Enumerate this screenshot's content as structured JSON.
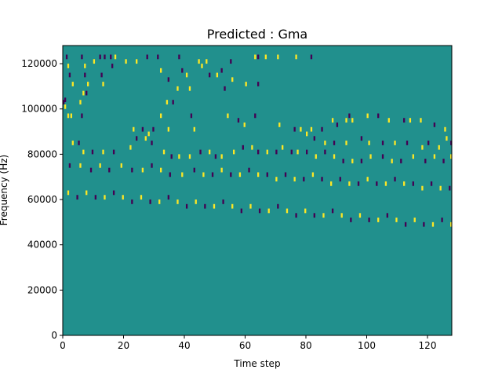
{
  "figure": {
    "title": "Predicted : Gma"
  },
  "chart_data": {
    "type": "heatmap",
    "title": "Predicted : Gma",
    "xlabel": "Time step",
    "ylabel": "Frequency (Hz)",
    "xlim": [
      0,
      128
    ],
    "ylim": [
      0,
      128000
    ],
    "x_ticks": [
      0,
      20,
      40,
      60,
      80,
      100,
      120
    ],
    "x_tick_labels": [
      "0",
      "20",
      "40",
      "60",
      "80",
      "100",
      "120"
    ],
    "y_ticks": [
      0,
      20000,
      40000,
      60000,
      80000,
      100000,
      120000
    ],
    "y_tick_labels": [
      "0",
      "20000",
      "40000",
      "60000",
      "80000",
      "100000",
      "120000"
    ],
    "grid": false,
    "legend": "none",
    "colormap": "viridis",
    "colors": {
      "background": "#21908d",
      "high": "#fde725",
      "low": "#440154"
    },
    "bin_height_hz": 2000,
    "description_of_values": "cell value: -1 = low (dark purple), 0 = neutral (teal), 1 = high (yellow)",
    "cells": [
      [
        2,
        122,
        -1
      ],
      [
        3,
        118,
        1
      ],
      [
        4,
        114,
        -1
      ],
      [
        6,
        110,
        1
      ],
      [
        1,
        103,
        -1
      ],
      [
        0,
        102,
        -1
      ],
      [
        1,
        100,
        1
      ],
      [
        3,
        96,
        1
      ],
      [
        5,
        96,
        1
      ],
      [
        12,
        122,
        -1
      ],
      [
        14,
        118,
        1
      ],
      [
        14,
        114,
        -1
      ],
      [
        16,
        110,
        1
      ],
      [
        13,
        106,
        1
      ],
      [
        15,
        106,
        -1
      ],
      [
        11,
        102,
        1
      ],
      [
        12,
        96,
        -1
      ],
      [
        20,
        120,
        1
      ],
      [
        24,
        122,
        -1
      ],
      [
        27,
        122,
        -1
      ],
      [
        31,
        122,
        -1
      ],
      [
        34,
        122,
        1
      ],
      [
        32,
        118,
        -1
      ],
      [
        25,
        114,
        -1
      ],
      [
        26,
        110,
        1
      ],
      [
        41,
        120,
        1
      ],
      [
        48,
        120,
        1
      ],
      [
        55,
        122,
        -1
      ],
      [
        62,
        122,
        -1
      ],
      [
        76,
        122,
        -1
      ],
      [
        89,
        120,
        1
      ],
      [
        91,
        118,
        1
      ],
      [
        94,
        120,
        1
      ],
      [
        64,
        116,
        1
      ],
      [
        78,
        116,
        -1
      ],
      [
        81,
        114,
        1
      ],
      [
        96,
        114,
        -1
      ],
      [
        101,
        114,
        1
      ],
      [
        104,
        116,
        -1
      ],
      [
        110,
        120,
        -1
      ],
      [
        126,
        122,
        1
      ],
      [
        128,
        122,
        -1
      ],
      [
        133,
        122,
        1
      ],
      [
        141,
        122,
        1
      ],
      [
        152,
        128,
        -1
      ],
      [
        153,
        122,
        1
      ],
      [
        163,
        122,
        -1
      ],
      [
        69,
        112,
        -1
      ],
      [
        75,
        108,
        1
      ],
      [
        83,
        108,
        1
      ],
      [
        111,
        112,
        1
      ],
      [
        106,
        108,
        -1
      ],
      [
        120,
        110,
        1
      ],
      [
        128,
        110,
        -1
      ],
      [
        68,
        102,
        1
      ],
      [
        72,
        102,
        -1
      ],
      [
        64,
        96,
        1
      ],
      [
        69,
        90,
        1
      ],
      [
        59,
        90,
        -1
      ],
      [
        56,
        88,
        1
      ],
      [
        52,
        90,
        -1
      ],
      [
        46,
        90,
        1
      ],
      [
        84,
        96,
        -1
      ],
      [
        86,
        90,
        1
      ],
      [
        108,
        96,
        1
      ],
      [
        115,
        94,
        -1
      ],
      [
        119,
        92,
        1
      ],
      [
        126,
        96,
        -1
      ],
      [
        142,
        92,
        1
      ],
      [
        152,
        90,
        -1
      ],
      [
        156,
        90,
        1
      ],
      [
        163,
        90,
        1
      ],
      [
        170,
        90,
        -1
      ],
      [
        177,
        94,
        1
      ],
      [
        180,
        92,
        -1
      ],
      [
        186,
        94,
        1
      ],
      [
        188,
        96,
        -1
      ],
      [
        190,
        94,
        1
      ],
      [
        200,
        96,
        1
      ],
      [
        207,
        96,
        -1
      ],
      [
        214,
        94,
        1
      ],
      [
        224,
        94,
        -1
      ],
      [
        228,
        94,
        1
      ],
      [
        235,
        94,
        1
      ],
      [
        244,
        92,
        -1
      ],
      [
        251,
        90,
        1
      ],
      [
        160,
        88,
        1
      ],
      [
        165,
        86,
        -1
      ],
      [
        172,
        84,
        1
      ],
      [
        178,
        84,
        -1
      ],
      [
        186,
        84,
        1
      ],
      [
        196,
        86,
        -1
      ],
      [
        201,
        84,
        1
      ],
      [
        210,
        84,
        -1
      ],
      [
        218,
        84,
        1
      ],
      [
        226,
        84,
        -1
      ],
      [
        236,
        82,
        1
      ],
      [
        240,
        84,
        -1
      ],
      [
        247,
        82,
        1
      ],
      [
        252,
        86,
        1
      ],
      [
        255,
        84,
        -1
      ],
      [
        6,
        84,
        1
      ],
      [
        10,
        84,
        -1
      ],
      [
        13,
        80,
        1
      ],
      [
        19,
        80,
        -1
      ],
      [
        26,
        80,
        1
      ],
      [
        33,
        80,
        -1
      ],
      [
        44,
        82,
        1
      ],
      [
        48,
        86,
        -1
      ],
      [
        54,
        86,
        1
      ],
      [
        58,
        84,
        -1
      ],
      [
        66,
        80,
        1
      ],
      [
        71,
        78,
        -1
      ],
      [
        76,
        78,
        1
      ],
      [
        83,
        78,
        1
      ],
      [
        90,
        80,
        -1
      ],
      [
        96,
        80,
        1
      ],
      [
        100,
        78,
        -1
      ],
      [
        104,
        78,
        1
      ],
      [
        112,
        80,
        1
      ],
      [
        118,
        82,
        -1
      ],
      [
        124,
        82,
        1
      ],
      [
        128,
        80,
        -1
      ],
      [
        134,
        80,
        1
      ],
      [
        140,
        80,
        -1
      ],
      [
        144,
        82,
        1
      ],
      [
        150,
        80,
        -1
      ],
      [
        154,
        80,
        1
      ],
      [
        160,
        80,
        -1
      ],
      [
        166,
        78,
        1
      ],
      [
        172,
        80,
        -1
      ],
      [
        178,
        78,
        1
      ],
      [
        184,
        76,
        -1
      ],
      [
        190,
        76,
        1
      ],
      [
        196,
        76,
        -1
      ],
      [
        202,
        78,
        1
      ],
      [
        210,
        78,
        -1
      ],
      [
        216,
        76,
        1
      ],
      [
        222,
        76,
        -1
      ],
      [
        230,
        78,
        1
      ],
      [
        238,
        76,
        -1
      ],
      [
        244,
        78,
        1
      ],
      [
        250,
        76,
        -1
      ],
      [
        255,
        78,
        1
      ],
      [
        4,
        74,
        -1
      ],
      [
        11,
        74,
        1
      ],
      [
        18,
        72,
        -1
      ],
      [
        24,
        74,
        1
      ],
      [
        30,
        72,
        -1
      ],
      [
        38,
        74,
        1
      ],
      [
        45,
        72,
        -1
      ],
      [
        52,
        72,
        1
      ],
      [
        58,
        74,
        -1
      ],
      [
        64,
        72,
        1
      ],
      [
        70,
        70,
        -1
      ],
      [
        78,
        70,
        1
      ],
      [
        86,
        72,
        -1
      ],
      [
        92,
        70,
        1
      ],
      [
        98,
        70,
        -1
      ],
      [
        104,
        72,
        1
      ],
      [
        110,
        70,
        -1
      ],
      [
        116,
        70,
        1
      ],
      [
        122,
        72,
        -1
      ],
      [
        128,
        70,
        1
      ],
      [
        134,
        70,
        -1
      ],
      [
        140,
        68,
        1
      ],
      [
        146,
        70,
        -1
      ],
      [
        152,
        68,
        1
      ],
      [
        158,
        68,
        -1
      ],
      [
        164,
        70,
        1
      ],
      [
        170,
        68,
        -1
      ],
      [
        176,
        66,
        1
      ],
      [
        182,
        68,
        -1
      ],
      [
        188,
        66,
        1
      ],
      [
        194,
        66,
        -1
      ],
      [
        200,
        68,
        1
      ],
      [
        206,
        66,
        -1
      ],
      [
        212,
        66,
        1
      ],
      [
        218,
        68,
        -1
      ],
      [
        224,
        66,
        1
      ],
      [
        230,
        66,
        -1
      ],
      [
        236,
        64,
        1
      ],
      [
        242,
        66,
        -1
      ],
      [
        248,
        64,
        1
      ],
      [
        254,
        64,
        -1
      ],
      [
        3,
        62,
        1
      ],
      [
        9,
        60,
        -1
      ],
      [
        15,
        62,
        1
      ],
      [
        21,
        60,
        -1
      ],
      [
        27,
        60,
        1
      ],
      [
        33,
        62,
        -1
      ],
      [
        39,
        60,
        1
      ],
      [
        45,
        58,
        -1
      ],
      [
        51,
        60,
        1
      ],
      [
        57,
        58,
        -1
      ],
      [
        63,
        58,
        1
      ],
      [
        69,
        60,
        -1
      ],
      [
        75,
        58,
        1
      ],
      [
        81,
        56,
        -1
      ],
      [
        87,
        58,
        1
      ],
      [
        93,
        56,
        -1
      ],
      [
        99,
        56,
        1
      ],
      [
        105,
        58,
        -1
      ],
      [
        111,
        56,
        1
      ],
      [
        117,
        54,
        -1
      ],
      [
        123,
        56,
        1
      ],
      [
        129,
        54,
        -1
      ],
      [
        135,
        54,
        1
      ],
      [
        141,
        56,
        -1
      ],
      [
        147,
        54,
        1
      ],
      [
        153,
        52,
        -1
      ],
      [
        159,
        54,
        1
      ],
      [
        165,
        52,
        -1
      ],
      [
        171,
        52,
        1
      ],
      [
        177,
        54,
        -1
      ],
      [
        183,
        52,
        1
      ],
      [
        189,
        50,
        -1
      ],
      [
        195,
        52,
        1
      ],
      [
        201,
        50,
        -1
      ],
      [
        207,
        50,
        1
      ],
      [
        213,
        52,
        -1
      ],
      [
        219,
        50,
        1
      ],
      [
        225,
        48,
        -1
      ],
      [
        231,
        50,
        1
      ],
      [
        237,
        48,
        -1
      ],
      [
        243,
        48,
        1
      ],
      [
        249,
        50,
        -1
      ],
      [
        255,
        48,
        1
      ]
    ]
  }
}
